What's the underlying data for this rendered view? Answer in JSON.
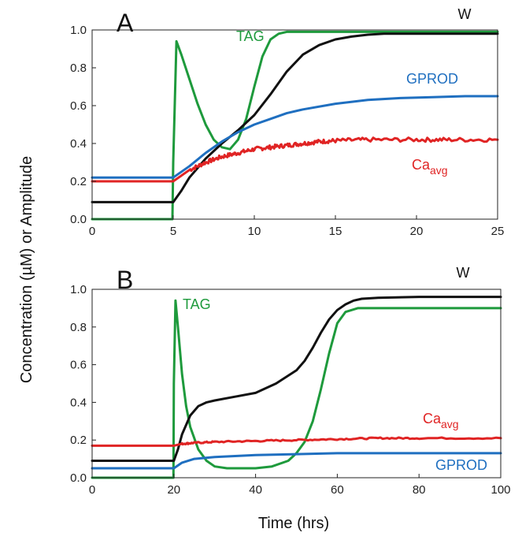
{
  "chart_data": {
    "xlabel": "Time (hrs)",
    "ylabel": "Concentration (µM) or Amplitude",
    "panels": [
      {
        "type": "line",
        "panel_label": "A",
        "xlim": [
          0,
          25
        ],
        "ylim": [
          0,
          1.0
        ],
        "x_ticks": [
          0,
          5,
          10,
          15,
          20,
          25
        ],
        "y_ticks": [
          "0.0",
          "0.2",
          "0.4",
          "0.6",
          "0.8",
          "1.0"
        ],
        "series": [
          {
            "name": "TAG",
            "color": "#1e9a3c",
            "x": [
              0,
              4.95,
              5.0,
              5.2,
              5.5,
              6,
              6.5,
              7,
              7.5,
              8,
              8.5,
              9,
              9.5,
              10,
              10.5,
              11,
              11.5,
              12,
              13,
              15,
              20,
              25
            ],
            "y": [
              0.0,
              0.0,
              0.3,
              0.94,
              0.87,
              0.74,
              0.61,
              0.5,
              0.42,
              0.38,
              0.37,
              0.42,
              0.53,
              0.7,
              0.86,
              0.95,
              0.98,
              0.99,
              0.99,
              0.99,
              0.99,
              0.99
            ]
          },
          {
            "name": "W",
            "color": "#111111",
            "x": [
              0,
              5,
              5.5,
              6,
              7,
              8,
              9,
              10,
              11,
              12,
              13,
              14,
              15,
              16,
              17,
              18,
              19,
              20,
              22,
              25
            ],
            "y": [
              0.09,
              0.09,
              0.15,
              0.22,
              0.32,
              0.4,
              0.47,
              0.55,
              0.66,
              0.78,
              0.87,
              0.92,
              0.95,
              0.965,
              0.975,
              0.98,
              0.98,
              0.98,
              0.98,
              0.98
            ]
          },
          {
            "name": "GPROD",
            "color": "#1f6fc0",
            "x": [
              0,
              5,
              6,
              7,
              8,
              9,
              10,
              11,
              12,
              13,
              15,
              17,
              19,
              21,
              23,
              25
            ],
            "y": [
              0.22,
              0.22,
              0.28,
              0.35,
              0.41,
              0.46,
              0.5,
              0.53,
              0.56,
              0.58,
              0.61,
              0.63,
              0.64,
              0.645,
              0.65,
              0.65
            ]
          },
          {
            "name": "Ca_avg",
            "label_main": "Ca",
            "label_sub": "avg",
            "color": "#e02424",
            "noise": 0.011,
            "x": [
              0,
              5,
              6,
              7,
              8,
              9,
              10,
              11,
              12,
              13,
              14,
              15,
              17,
              20,
              22,
              25
            ],
            "y": [
              0.2,
              0.2,
              0.26,
              0.3,
              0.33,
              0.35,
              0.37,
              0.38,
              0.39,
              0.4,
              0.41,
              0.415,
              0.42,
              0.42,
              0.42,
              0.42
            ]
          }
        ]
      },
      {
        "type": "line",
        "panel_label": "B",
        "xlim": [
          0,
          100
        ],
        "ylim": [
          0,
          1.0
        ],
        "x_ticks": [
          0,
          20,
          40,
          60,
          80,
          100
        ],
        "y_ticks": [
          "0.0",
          "0.2",
          "0.4",
          "0.6",
          "0.8",
          "1.0"
        ],
        "series": [
          {
            "name": "TAG",
            "color": "#1e9a3c",
            "x": [
              0,
              19.9,
              20,
              20.4,
              21,
              22,
              23,
              24,
              26,
              28,
              30,
              33,
              36,
              40,
              44,
              48,
              50,
              52,
              54,
              56,
              58,
              60,
              62,
              65,
              70,
              80,
              100
            ],
            "y": [
              0.0,
              0.0,
              0.5,
              0.94,
              0.8,
              0.55,
              0.38,
              0.27,
              0.15,
              0.09,
              0.06,
              0.05,
              0.05,
              0.05,
              0.06,
              0.09,
              0.13,
              0.19,
              0.3,
              0.47,
              0.66,
              0.82,
              0.88,
              0.9,
              0.9,
              0.9,
              0.9
            ]
          },
          {
            "name": "W",
            "color": "#111111",
            "x": [
              0,
              20,
              21,
              22,
              24,
              26,
              28,
              30,
              35,
              40,
              45,
              50,
              52,
              54,
              56,
              58,
              60,
              62,
              64,
              66,
              70,
              80,
              100
            ],
            "y": [
              0.09,
              0.09,
              0.15,
              0.23,
              0.33,
              0.38,
              0.4,
              0.41,
              0.43,
              0.45,
              0.5,
              0.57,
              0.62,
              0.69,
              0.77,
              0.84,
              0.89,
              0.92,
              0.94,
              0.95,
              0.955,
              0.96,
              0.96
            ]
          },
          {
            "name": "Ca_avg",
            "label_main": "Ca",
            "label_sub": "avg",
            "color": "#e02424",
            "noise": 0.004,
            "x": [
              0,
              20,
              22,
              25,
              30,
              40,
              50,
              60,
              70,
              80,
              100
            ],
            "y": [
              0.17,
              0.17,
              0.18,
              0.185,
              0.19,
              0.195,
              0.2,
              0.205,
              0.21,
              0.21,
              0.21
            ]
          },
          {
            "name": "GPROD",
            "color": "#1f6fc0",
            "x": [
              0,
              20,
              22,
              25,
              30,
              35,
              40,
              50,
              60,
              70,
              80,
              100
            ],
            "y": [
              0.05,
              0.05,
              0.08,
              0.1,
              0.11,
              0.115,
              0.12,
              0.125,
              0.13,
              0.13,
              0.13,
              0.13
            ]
          }
        ]
      }
    ]
  }
}
